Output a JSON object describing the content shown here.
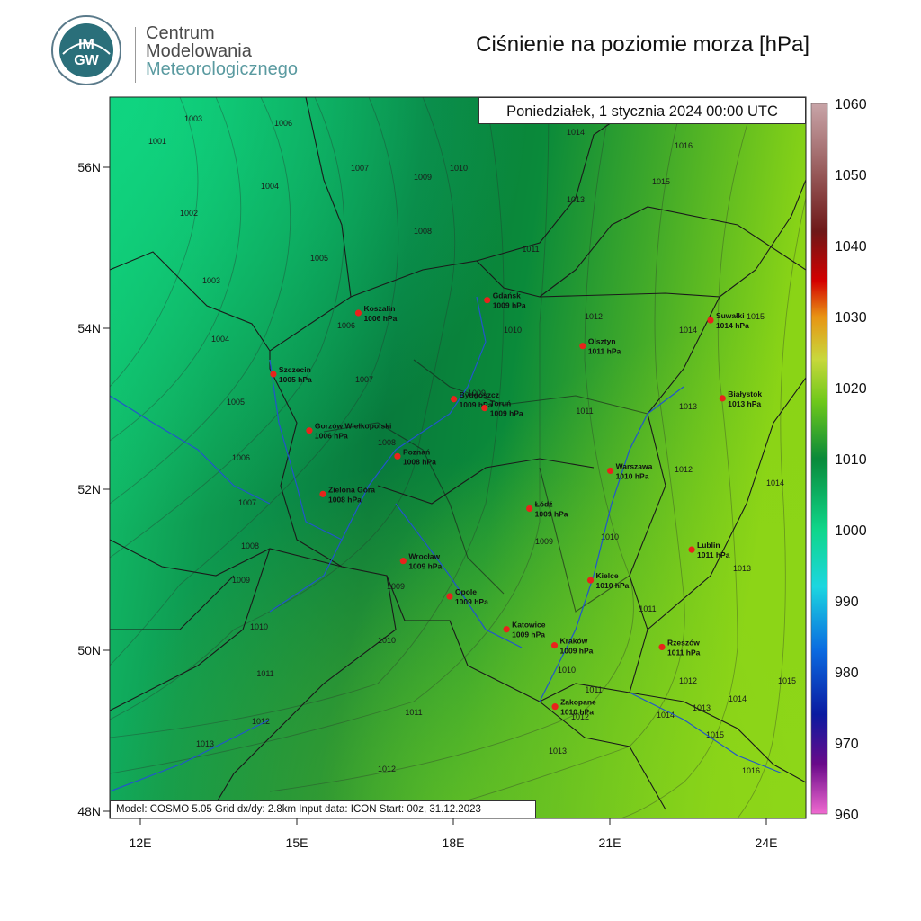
{
  "header": {
    "org_line1": "Centrum",
    "org_line2": "Modelowania",
    "org_line3": "Meteorologicznego",
    "logo_text_top": "IM",
    "logo_text_bottom": "GW",
    "title": "Ciśnienie na poziomie morza [hPa]"
  },
  "map": {
    "datetime": "Poniedziałek, 1 stycznia 2024 00:00 UTC",
    "model_info": "Model: COSMO 5.05  Grid dx/dy: 2.8km  Input data: ICON  Start: 00z, 31.12.2023",
    "lat_ticks": [
      "56N",
      "54N",
      "52N",
      "50N",
      "48N"
    ],
    "lon_ticks": [
      "12E",
      "15E",
      "18E",
      "21E",
      "24E"
    ],
    "lat_values": [
      56,
      54,
      52,
      50,
      48
    ],
    "lon_values": [
      12,
      15,
      18,
      21,
      24
    ],
    "colors": {
      "low": "#0fd27a",
      "mid": "#07753a",
      "high": "#86d611",
      "border": "#1a1a1a",
      "river": "#2255cc",
      "city": "#e8231c"
    },
    "cities": [
      {
        "name": "Gdańsk",
        "value": "1009 hPa",
        "lon": 18.65,
        "lat": 54.35
      },
      {
        "name": "Koszalin",
        "value": "1006 hPa",
        "lon": 16.18,
        "lat": 54.19
      },
      {
        "name": "Suwałki",
        "value": "1014 hPa",
        "lon": 22.93,
        "lat": 54.1
      },
      {
        "name": "Olsztyn",
        "value": "1011 hPa",
        "lon": 20.48,
        "lat": 53.78
      },
      {
        "name": "Szczecin",
        "value": "1005 hPa",
        "lon": 14.55,
        "lat": 53.43
      },
      {
        "name": "Białystok",
        "value": "1013 hPa",
        "lon": 23.16,
        "lat": 53.13
      },
      {
        "name": "Bydgoszcz",
        "value": "1009 hPa",
        "lon": 18.01,
        "lat": 53.12
      },
      {
        "name": "Toruń",
        "value": "1009 hPa",
        "lon": 18.6,
        "lat": 53.01
      },
      {
        "name": "Gorzów Wielkopolski",
        "value": "1006 hPa",
        "lon": 15.24,
        "lat": 52.73
      },
      {
        "name": "Poznań",
        "value": "1008 hPa",
        "lon": 16.93,
        "lat": 52.41
      },
      {
        "name": "Warszawa",
        "value": "1010 hPa",
        "lon": 21.01,
        "lat": 52.23
      },
      {
        "name": "Zielona Góra",
        "value": "1008 hPa",
        "lon": 15.5,
        "lat": 51.94
      },
      {
        "name": "Łódź",
        "value": "1009 hPa",
        "lon": 19.46,
        "lat": 51.76
      },
      {
        "name": "Lublin",
        "value": "1011 hPa",
        "lon": 22.57,
        "lat": 51.25
      },
      {
        "name": "Wrocław",
        "value": "1009 hPa",
        "lon": 17.04,
        "lat": 51.11
      },
      {
        "name": "Kielce",
        "value": "1010 hPa",
        "lon": 20.63,
        "lat": 50.87
      },
      {
        "name": "Opole",
        "value": "1009 hPa",
        "lon": 17.93,
        "lat": 50.67
      },
      {
        "name": "Katowice",
        "value": "1009 hPa",
        "lon": 19.02,
        "lat": 50.26
      },
      {
        "name": "Rzeszów",
        "value": "1011 hPa",
        "lon": 22.0,
        "lat": 50.04
      },
      {
        "name": "Kraków",
        "value": "1009 hPa",
        "lon": 19.94,
        "lat": 50.06
      },
      {
        "name": "Zakopane",
        "value": "1010 hPa",
        "lon": 19.95,
        "lat": 49.3
      }
    ]
  },
  "colorbar": {
    "labels": [
      "1060",
      "1050",
      "1040",
      "1030",
      "1020",
      "1010",
      "1000",
      "990",
      "980",
      "970",
      "960"
    ],
    "stops": [
      "#c8a4a8",
      "#9b6060",
      "#6e1818",
      "#d40000",
      "#e89414",
      "#c8d83c",
      "#6ec81a",
      "#0a8a3a",
      "#0fd68a",
      "#1cd6e0",
      "#0a6ae0",
      "#0a1aa0",
      "#6a0a8a",
      "#f06ad0"
    ]
  }
}
